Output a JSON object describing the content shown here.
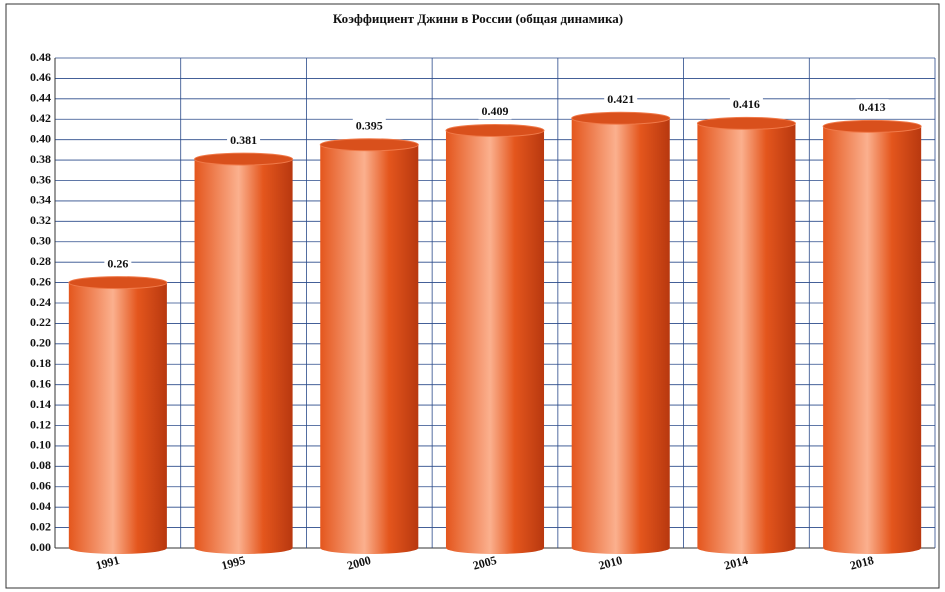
{
  "chart_data": {
    "type": "bar",
    "title": "Коэффициент Джини в России (общая динамика)",
    "categories": [
      "1991",
      "1995",
      "2000",
      "2005",
      "2010",
      "2014",
      "2018"
    ],
    "values": [
      0.26,
      0.381,
      0.395,
      0.409,
      0.421,
      0.416,
      0.413
    ],
    "color": "#e4561d",
    "ylim": [
      0,
      0.48
    ],
    "yticks": [
      {
        "value": 0,
        "label": "0.00"
      },
      0.02,
      0.04,
      0.06,
      0.08,
      {
        "value": 0.1,
        "label": "0.10"
      },
      0.12,
      0.14,
      0.16,
      0.18,
      {
        "value": 0.2,
        "label": "0.20"
      },
      0.22,
      0.24,
      0.26,
      0.28,
      {
        "value": 0.3,
        "label": "0.30"
      },
      0.32,
      0.34,
      0.36,
      0.38,
      {
        "value": 0.4,
        "label": "0.40"
      },
      0.42,
      0.44,
      0.46,
      0.48
    ],
    "grid": true
  }
}
